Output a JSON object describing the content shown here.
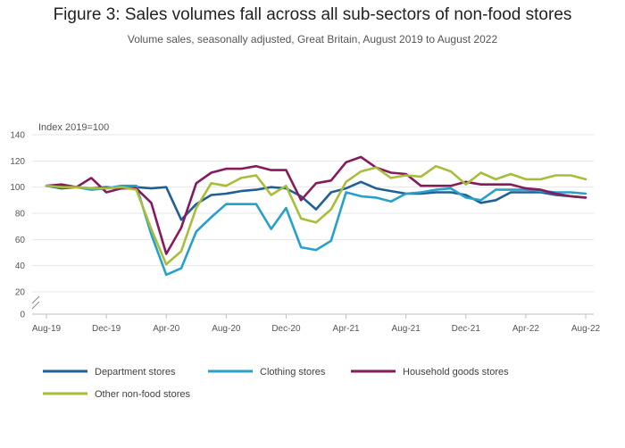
{
  "chart_data": {
    "type": "line",
    "title": "Figure 3: Sales volumes fall across all sub-sectors of non-food stores",
    "subtitle": "Volume sales, seasonally adjusted, Great Britain, August 2019 to August 2022",
    "ylabel": "Index 2019=100",
    "ylim": [
      0,
      140
    ],
    "yticks": [
      0,
      20,
      40,
      60,
      80,
      100,
      120,
      140
    ],
    "axis_break": true,
    "grid": true,
    "legend_position": "bottom",
    "x_tick_labels": [
      "Aug-19",
      "Dec-19",
      "Apr-20",
      "Aug-20",
      "Dec-20",
      "Apr-21",
      "Aug-21",
      "Dec-21",
      "Apr-22",
      "Aug-22"
    ],
    "x": [
      "Aug-19",
      "Sep-19",
      "Oct-19",
      "Nov-19",
      "Dec-19",
      "Jan-20",
      "Feb-20",
      "Mar-20",
      "Apr-20",
      "May-20",
      "Jun-20",
      "Jul-20",
      "Aug-20",
      "Sep-20",
      "Oct-20",
      "Nov-20",
      "Dec-20",
      "Jan-21",
      "Feb-21",
      "Mar-21",
      "Apr-21",
      "May-21",
      "Jun-21",
      "Jul-21",
      "Aug-21",
      "Sep-21",
      "Oct-21",
      "Nov-21",
      "Dec-21",
      "Jan-22",
      "Feb-22",
      "Mar-22",
      "Apr-22",
      "May-22",
      "Jun-22",
      "Jul-22",
      "Aug-22"
    ],
    "series": [
      {
        "name": "Department stores",
        "color": "#206095",
        "values": [
          101,
          99,
          100,
          99,
          100,
          99,
          100,
          99,
          100,
          75,
          87,
          94,
          95,
          97,
          98,
          100,
          99,
          93,
          83,
          96,
          99,
          104,
          99,
          97,
          95,
          95,
          96,
          96,
          94,
          88,
          90,
          96,
          96,
          96,
          94,
          93,
          92
        ]
      },
      {
        "name": "Clothing stores",
        "color": "#27a0cc",
        "values": [
          101,
          101,
          100,
          98,
          99,
          101,
          101,
          64,
          33,
          38,
          66,
          77,
          87,
          87,
          87,
          68,
          84,
          54,
          52,
          59,
          96,
          93,
          92,
          89,
          95,
          96,
          98,
          99,
          92,
          90,
          98,
          98,
          98,
          97,
          96,
          96,
          95
        ]
      },
      {
        "name": "Household goods stores",
        "color": "#871a5b",
        "values": [
          101,
          102,
          100,
          107,
          96,
          99,
          99,
          88,
          49,
          69,
          103,
          111,
          114,
          114,
          116,
          113,
          113,
          90,
          103,
          105,
          119,
          123,
          115,
          111,
          110,
          101,
          101,
          101,
          104,
          102,
          102,
          102,
          99,
          98,
          95,
          93,
          92
        ]
      },
      {
        "name": "Other non-food stores",
        "color": "#a8bd3a",
        "values": [
          101,
          100,
          100,
          99,
          99,
          100,
          98,
          68,
          41,
          51,
          84,
          103,
          101,
          107,
          109,
          94,
          101,
          76,
          73,
          83,
          104,
          112,
          115,
          107,
          109,
          108,
          116,
          112,
          102,
          111,
          106,
          110,
          106,
          106,
          109,
          109,
          106
        ]
      }
    ]
  }
}
